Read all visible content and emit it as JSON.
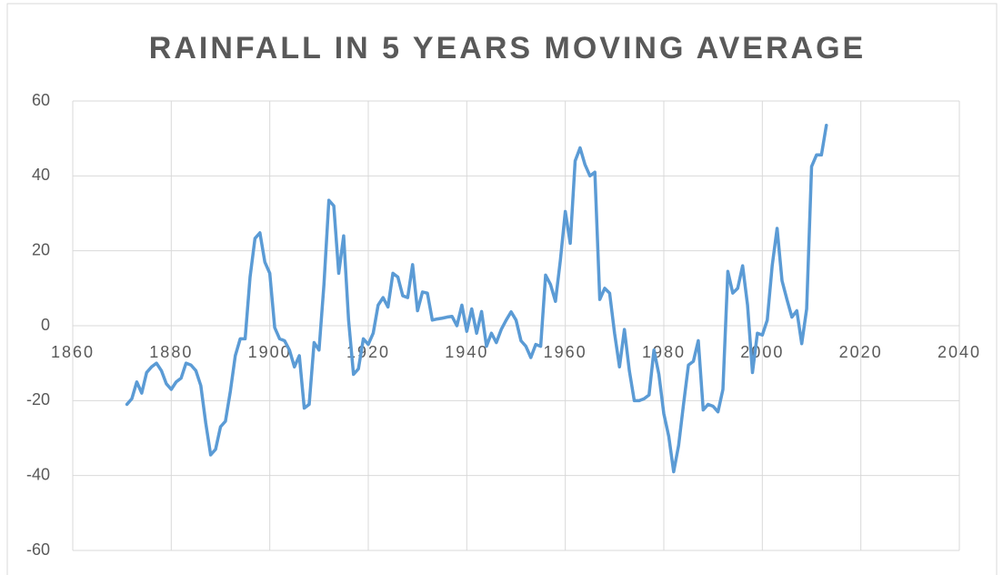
{
  "chart_data": {
    "type": "line",
    "title": "RAINFALL IN 5 YEARS MOVING AVERAGE",
    "color": "#5b9bd5",
    "grid": true,
    "x": [
      1871,
      1872,
      1873,
      1874,
      1875,
      1876,
      1877,
      1878,
      1879,
      1880,
      1881,
      1882,
      1883,
      1884,
      1885,
      1886,
      1887,
      1888,
      1889,
      1890,
      1891,
      1892,
      1893,
      1894,
      1895,
      1896,
      1897,
      1898,
      1899,
      1900,
      1901,
      1902,
      1903,
      1904,
      1905,
      1906,
      1907,
      1908,
      1909,
      1910,
      1911,
      1912,
      1913,
      1914,
      1915,
      1916,
      1917,
      1918,
      1919,
      1920,
      1921,
      1922,
      1923,
      1924,
      1925,
      1926,
      1927,
      1928,
      1929,
      1930,
      1931,
      1932,
      1933,
      1934,
      1935,
      1936,
      1937,
      1938,
      1939,
      1940,
      1941,
      1942,
      1943,
      1944,
      1945,
      1946,
      1947,
      1948,
      1949,
      1950,
      1951,
      1952,
      1953,
      1954,
      1955,
      1956,
      1957,
      1958,
      1959,
      1960,
      1961,
      1962,
      1963,
      1964,
      1965,
      1966,
      1967,
      1968,
      1969,
      1970,
      1971,
      1972,
      1973,
      1974,
      1975,
      1976,
      1977,
      1978,
      1979,
      1980,
      1981,
      1982,
      1983,
      1984,
      1985,
      1986,
      1987,
      1988,
      1989,
      1990,
      1991,
      1992,
      1993,
      1994,
      1995,
      1996,
      1997,
      1998,
      1999,
      2000,
      2001,
      2002,
      2003,
      2004,
      2005,
      2006,
      2007,
      2008,
      2009,
      2010,
      2011,
      2012,
      2013
    ],
    "values": [
      -21,
      -19.5,
      -15,
      -18,
      -12.5,
      -11,
      -10,
      -12,
      -15.5,
      -17,
      -15,
      -14,
      -10,
      -10.5,
      -12,
      -16,
      -26,
      -34.5,
      -33,
      -27,
      -25.5,
      -17.5,
      -8,
      -3.5,
      -3.5,
      13,
      23.3,
      24.8,
      17,
      14,
      -0.5,
      -3.5,
      -4,
      -6.5,
      -11,
      -8,
      -22,
      -21,
      -4.5,
      -6.5,
      11,
      33.5,
      32,
      14,
      24,
      1.5,
      -13,
      -11.5,
      -3.5,
      -5,
      -2,
      5.5,
      7.5,
      5,
      14,
      13,
      8,
      7.5,
      16.3,
      4,
      9,
      8.7,
      1.5,
      1.8,
      2,
      2.3,
      2.5,
      0,
      5.5,
      -1.5,
      4.5,
      -2,
      3.8,
      -5.5,
      -2,
      -4.5,
      -1,
      1.5,
      3.7,
      1.5,
      -4,
      -5.5,
      -8.5,
      -5,
      -5.5,
      13.5,
      11,
      6.5,
      17.5,
      30.5,
      22,
      44,
      47.5,
      43,
      40,
      41,
      7,
      10,
      8.7,
      -2,
      -11,
      -1,
      -12,
      -20,
      -20,
      -19.5,
      -18.5,
      -6.5,
      -13,
      -23.5,
      -29.5,
      -39,
      -32,
      -21,
      -10.5,
      -9.5,
      -4,
      -22.5,
      -21,
      -21.5,
      -23,
      -17,
      14.5,
      8.7,
      10,
      16,
      5.5,
      -12.5,
      -2,
      -2.5,
      1.5,
      16,
      26,
      12,
      7,
      2.3,
      4,
      -4.8,
      4.5,
      42.5,
      45.6,
      45.6,
      53.5
    ],
    "xlim": [
      1860,
      2040
    ],
    "xticks": [
      1860,
      1880,
      1900,
      1920,
      1940,
      1960,
      1980,
      2000,
      2020,
      2040
    ],
    "ylim": [
      -60,
      60
    ],
    "yticks": [
      -60,
      -40,
      -20,
      0,
      20,
      40,
      60
    ]
  }
}
